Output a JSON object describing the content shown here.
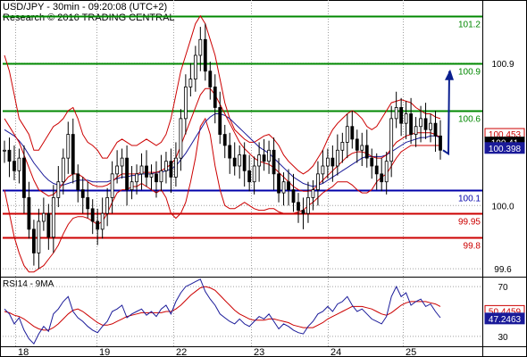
{
  "header": {
    "line1": "USD/JPY - 30min - 09:20:08 (UTC+2)",
    "line2": "Research © 2016 TRADING CENTRAL"
  },
  "rsi_label": "RSI14 - 9MA",
  "colors": {
    "candle": "#000000",
    "bollinger": "#cc0000",
    "ma": "#1a1a99",
    "resistance": "#008800",
    "support_blue": "#0000aa",
    "support_red": "#cc0000",
    "forecast_arrow": "#0a1f8f",
    "grid": "#a0a0a0"
  },
  "chart_data": [
    {
      "type": "candlestick",
      "panel": "price",
      "title": "USD/JPY - 30min - 09:20:08 (UTC+2)",
      "x_ticks": [
        "18",
        "19",
        "22",
        "23",
        "24",
        "25"
      ],
      "y_ticks": [
        99.6,
        100.0,
        100.9
      ],
      "ylim": [
        99.55,
        101.3
      ],
      "levels": [
        {
          "label": "101.2",
          "value": 101.2,
          "color": "#008800"
        },
        {
          "label": "100.9",
          "value": 100.9,
          "color": "#008800"
        },
        {
          "label": "100.6",
          "value": 100.6,
          "color": "#008800"
        },
        {
          "label": "100.1",
          "value": 100.1,
          "color": "#0000aa"
        },
        {
          "label": "99.95",
          "value": 99.95,
          "color": "#cc0000"
        },
        {
          "label": "99.8",
          "value": 99.8,
          "color": "#cc0000"
        }
      ],
      "value_tags": [
        {
          "label": "100.453",
          "value": 100.453,
          "bg": "#ffffff",
          "fg": "#cc0000",
          "border": "#cc0000"
        },
        {
          "label": "100.41",
          "value": 100.41,
          "bg": "#000000",
          "fg": "#ffffff",
          "border": "#000000"
        },
        {
          "label": "100.398",
          "value": 100.398,
          "bg": "#1a1a99",
          "fg": "#ffffff",
          "border": "#1a1a99"
        }
      ],
      "close": [
        100.35,
        100.28,
        100.22,
        100.3,
        100.05,
        99.85,
        99.7,
        99.9,
        99.95,
        99.8,
        100.05,
        100.15,
        100.3,
        100.45,
        100.2,
        100.1,
        100.05,
        99.98,
        99.9,
        99.85,
        99.95,
        100.05,
        100.2,
        100.25,
        100.3,
        100.1,
        100.15,
        100.2,
        100.25,
        100.18,
        100.2,
        100.15,
        100.22,
        100.28,
        100.18,
        100.3,
        100.55,
        100.75,
        100.8,
        100.95,
        101.05,
        100.85,
        100.75,
        100.62,
        100.45,
        100.38,
        100.3,
        100.25,
        100.32,
        100.22,
        100.15,
        100.25,
        100.32,
        100.28,
        100.35,
        100.2,
        100.08,
        100.15,
        100.1,
        100.02,
        99.97,
        99.95,
        100.05,
        100.1,
        100.2,
        100.25,
        100.3,
        100.25,
        100.35,
        100.4,
        100.5,
        100.42,
        100.35,
        100.38,
        100.3,
        100.25,
        100.2,
        100.15,
        100.28,
        100.55,
        100.62,
        100.52,
        100.58,
        100.45,
        100.5,
        100.55,
        100.48,
        100.52,
        100.44,
        100.35
      ],
      "forecast": [
        100.35,
        100.85
      ],
      "bollinger_upper": [
        100.95,
        100.85,
        100.7,
        100.55,
        100.5,
        100.45,
        100.35,
        100.35,
        100.4,
        100.45,
        100.5,
        100.52,
        100.55,
        100.6,
        100.62,
        100.55,
        100.45,
        100.4,
        100.38,
        100.35,
        100.3,
        100.3,
        100.35,
        100.4,
        100.42,
        100.4,
        100.38,
        100.38,
        100.4,
        100.42,
        100.4,
        100.38,
        100.4,
        100.45,
        100.55,
        100.7,
        100.85,
        100.95,
        101.05,
        101.15,
        101.2,
        101.15,
        101.05,
        100.95,
        100.8,
        100.65,
        100.55,
        100.48,
        100.45,
        100.42,
        100.4,
        100.4,
        100.42,
        100.44,
        100.45,
        100.42,
        100.38,
        100.32,
        100.28,
        100.25,
        100.22,
        100.2,
        100.22,
        100.25,
        100.3,
        100.35,
        100.42,
        100.48,
        100.52,
        100.55,
        100.58,
        100.6,
        100.58,
        100.55,
        100.5,
        100.48,
        100.5,
        100.55,
        100.6,
        100.65,
        100.66,
        100.67,
        100.66,
        100.65,
        100.62,
        100.6,
        100.58,
        100.58,
        100.56,
        100.55
      ],
      "bollinger_lower": [
        100.1,
        99.95,
        99.8,
        99.7,
        99.62,
        99.58,
        99.58,
        99.6,
        99.62,
        99.66,
        99.7,
        99.75,
        99.82,
        99.88,
        99.92,
        99.93,
        99.93,
        99.92,
        99.9,
        99.88,
        99.9,
        99.95,
        100.02,
        100.08,
        100.1,
        100.1,
        100.12,
        100.12,
        100.14,
        100.12,
        100.1,
        100.08,
        100.1,
        100.05,
        99.95,
        99.92,
        99.95,
        100.02,
        100.15,
        100.3,
        100.5,
        100.55,
        100.45,
        100.25,
        100.1,
        100.0,
        99.98,
        99.98,
        100.0,
        100.02,
        100.0,
        99.98,
        99.97,
        99.97,
        99.98,
        99.98,
        99.96,
        99.95,
        99.95,
        99.95,
        99.96,
        99.97,
        100.0,
        100.02,
        100.05,
        100.08,
        100.1,
        100.12,
        100.15,
        100.15,
        100.15,
        100.13,
        100.1,
        100.08,
        100.08,
        100.1,
        100.15,
        100.18,
        100.2,
        100.25,
        100.3,
        100.34,
        100.36,
        100.38,
        100.38,
        100.38,
        100.38,
        100.38,
        100.38,
        100.38
      ],
      "ma_fast": [
        100.55,
        100.5,
        100.45,
        100.4,
        100.32,
        100.24,
        100.16,
        100.1,
        100.08,
        100.06,
        100.07,
        100.1,
        100.14,
        100.18,
        100.2,
        100.2,
        100.18,
        100.15,
        100.13,
        100.12,
        100.12,
        100.13,
        100.15,
        100.18,
        100.2,
        100.2,
        100.2,
        100.2,
        100.21,
        100.21,
        100.21,
        100.21,
        100.22,
        100.24,
        100.26,
        100.3,
        100.38,
        100.46,
        100.54,
        100.62,
        100.7,
        100.74,
        100.74,
        100.7,
        100.64,
        100.58,
        100.52,
        100.46,
        100.4,
        100.36,
        100.33,
        100.3,
        100.28,
        100.27,
        100.26,
        100.24,
        100.21,
        100.18,
        100.15,
        100.12,
        100.1,
        100.09,
        100.09,
        100.1,
        100.13,
        100.16,
        100.19,
        100.22,
        100.25,
        100.28,
        100.31,
        100.33,
        100.34,
        100.34,
        100.33,
        100.31,
        100.3,
        100.3,
        100.32,
        100.36,
        100.4,
        100.42,
        100.44,
        100.45,
        100.46,
        100.46,
        100.46,
        100.46,
        100.45,
        100.43
      ],
      "ma_slow": [
        100.48,
        100.46,
        100.44,
        100.41,
        100.37,
        100.32,
        100.27,
        100.23,
        100.19,
        100.16,
        100.14,
        100.13,
        100.13,
        100.14,
        100.15,
        100.16,
        100.16,
        100.16,
        100.15,
        100.15,
        100.15,
        100.15,
        100.16,
        100.17,
        100.18,
        100.18,
        100.19,
        100.19,
        100.2,
        100.2,
        100.2,
        100.21,
        100.21,
        100.22,
        100.23,
        100.25,
        100.29,
        100.33,
        100.38,
        100.43,
        100.48,
        100.53,
        100.56,
        100.58,
        100.58,
        100.57,
        100.55,
        100.52,
        100.49,
        100.46,
        100.43,
        100.4,
        100.37,
        100.35,
        100.33,
        100.3,
        100.27,
        100.24,
        100.21,
        100.18,
        100.16,
        100.14,
        100.13,
        100.12,
        100.13,
        100.14,
        100.16,
        100.18,
        100.2,
        100.22,
        100.24,
        100.26,
        100.28,
        100.3,
        100.31,
        100.31,
        100.31,
        100.31,
        100.32,
        100.34,
        100.36,
        100.38,
        100.4,
        100.41,
        100.42,
        100.43,
        100.43,
        100.44,
        100.44,
        100.43
      ]
    },
    {
      "type": "line",
      "panel": "rsi",
      "title": "RSI14 - 9MA",
      "y_ticks": [
        30,
        70
      ],
      "ylim": [
        22,
        78
      ],
      "value_tags": [
        {
          "label": "50.4459",
          "value": 50.4459,
          "bg": "#ffffff",
          "fg": "#cc0000",
          "border": "#cc0000"
        },
        {
          "label": "47.2463",
          "value": 47.2463,
          "bg": "#1a1a99",
          "fg": "#ffffff",
          "border": "#1a1a99"
        }
      ],
      "series": [
        {
          "values": [
            52,
            48,
            40,
            45,
            35,
            28,
            24,
            32,
            38,
            34,
            48,
            52,
            58,
            62,
            50,
            45,
            42,
            38,
            35,
            33,
            38,
            42,
            50,
            52,
            55,
            45,
            48,
            50,
            52,
            47,
            50,
            46,
            52,
            55,
            48,
            58,
            65,
            70,
            72,
            74,
            76,
            66,
            60,
            55,
            48,
            45,
            42,
            40,
            44,
            40,
            38,
            42,
            46,
            44,
            48,
            42,
            36,
            40,
            38,
            35,
            33,
            32,
            38,
            42,
            48,
            50,
            54,
            50,
            56,
            58,
            62,
            55,
            50,
            52,
            48,
            44,
            42,
            40,
            46,
            62,
            70,
            62,
            65,
            55,
            58,
            60,
            54,
            56,
            50,
            45
          ],
          "color": "#1a1a99"
        },
        {
          "values": [
            50,
            49,
            47,
            46,
            44,
            41,
            38,
            36,
            35,
            35,
            37,
            40,
            44,
            48,
            51,
            52,
            50,
            47,
            44,
            41,
            39,
            39,
            40,
            42,
            44,
            46,
            47,
            48,
            49,
            49,
            49,
            49,
            49,
            50,
            50,
            52,
            55,
            59,
            63,
            66,
            69,
            70,
            69,
            67,
            63,
            59,
            55,
            51,
            48,
            46,
            44,
            43,
            43,
            43,
            44,
            44,
            43,
            42,
            41,
            39,
            38,
            37,
            37,
            37,
            39,
            41,
            44,
            46,
            48,
            50,
            52,
            54,
            54,
            54,
            53,
            52,
            50,
            48,
            47,
            49,
            52,
            55,
            57,
            58,
            58,
            58,
            58,
            57,
            56,
            54
          ],
          "color": "#cc0000"
        }
      ]
    }
  ]
}
